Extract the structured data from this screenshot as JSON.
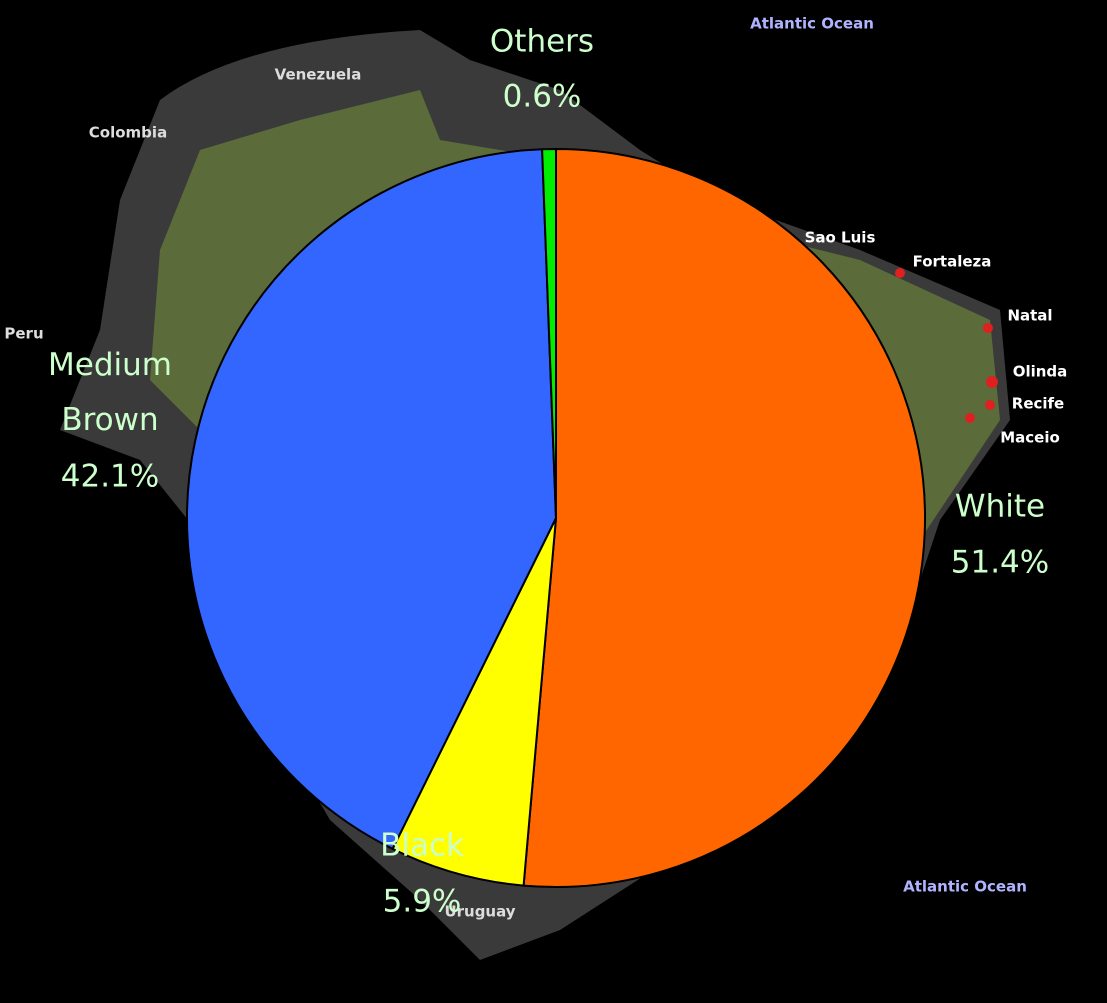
{
  "chart_data": {
    "type": "pie",
    "categories": [
      "White",
      "Black",
      "Medium Brown",
      "Others"
    ],
    "values": [
      51.4,
      5.9,
      42.1,
      0.6
    ],
    "value_labels": [
      "51.4%",
      "5.9%",
      "42.1%",
      "0.6%"
    ],
    "colors": [
      "#ff6600",
      "#ffff00",
      "#3366ff",
      "#00ee00"
    ],
    "label_color": "#ccffcc"
  },
  "background": {
    "labels": [
      "Atlantic Ocean",
      "Atlantic Ocean",
      "Venezuela",
      "Colombia",
      "Peru",
      "Sao Luis",
      "Fortaleza",
      "Natal",
      "Olinda",
      "Recife",
      "Maceio",
      "Uruguay"
    ]
  }
}
